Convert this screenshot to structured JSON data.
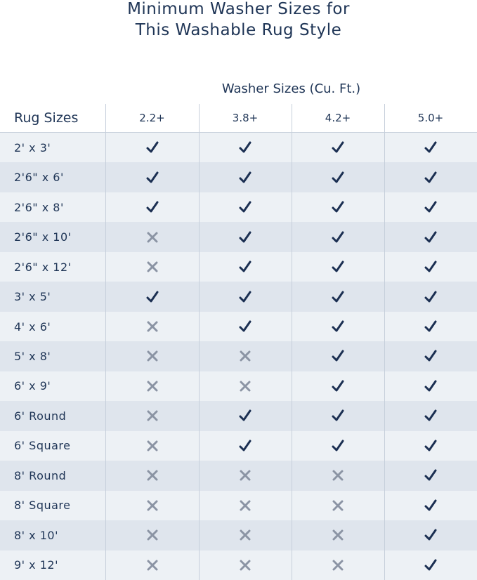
{
  "title": {
    "line1": "Minimum Washer Sizes for",
    "line2": "This Washable Rug Style"
  },
  "table": {
    "group_header": "Washer Sizes (Cu. Ft.)",
    "row_header": "Rug Sizes",
    "columns": [
      "2.2+",
      "3.8+",
      "4.2+",
      "5.0+"
    ],
    "rows": [
      {
        "size": "2' x 3'",
        "fits": [
          true,
          true,
          true,
          true
        ]
      },
      {
        "size": "2'6\" x 6'",
        "fits": [
          true,
          true,
          true,
          true
        ]
      },
      {
        "size": "2'6\" x 8'",
        "fits": [
          true,
          true,
          true,
          true
        ]
      },
      {
        "size": "2'6\" x 10'",
        "fits": [
          false,
          true,
          true,
          true
        ]
      },
      {
        "size": "2'6\" x 12'",
        "fits": [
          false,
          true,
          true,
          true
        ]
      },
      {
        "size": "3' x 5'",
        "fits": [
          true,
          true,
          true,
          true
        ]
      },
      {
        "size": "4' x 6'",
        "fits": [
          false,
          true,
          true,
          true
        ]
      },
      {
        "size": "5' x 8'",
        "fits": [
          false,
          false,
          true,
          true
        ]
      },
      {
        "size": "6' x 9'",
        "fits": [
          false,
          false,
          true,
          true
        ]
      },
      {
        "size": "6' Round",
        "fits": [
          false,
          true,
          true,
          true
        ]
      },
      {
        "size": "6' Square",
        "fits": [
          false,
          true,
          true,
          true
        ]
      },
      {
        "size": "8' Round",
        "fits": [
          false,
          false,
          false,
          true
        ]
      },
      {
        "size": "8' Square",
        "fits": [
          false,
          false,
          false,
          true
        ]
      },
      {
        "size": "8' x 10'",
        "fits": [
          false,
          false,
          false,
          true
        ]
      },
      {
        "size": "9' x 12'",
        "fits": [
          false,
          false,
          false,
          true
        ]
      }
    ]
  }
}
